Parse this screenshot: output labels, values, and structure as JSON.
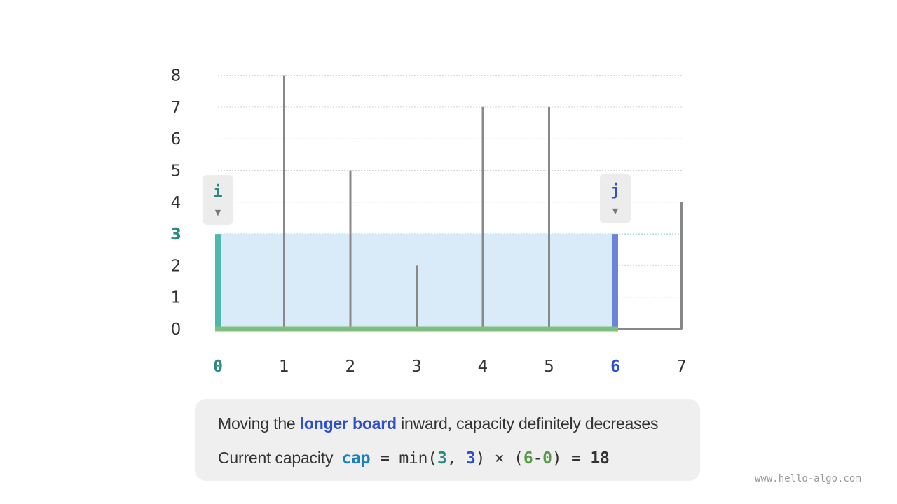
{
  "chart_data": {
    "type": "bar",
    "x": [
      "0",
      "1",
      "2",
      "3",
      "4",
      "5",
      "6",
      "7"
    ],
    "heights": [
      3,
      8,
      5,
      2,
      7,
      7,
      3,
      4
    ],
    "y_ticks": [
      "0",
      "1",
      "2",
      "3",
      "4",
      "5",
      "6",
      "7",
      "8"
    ],
    "ylim": [
      0,
      8
    ],
    "grid": true,
    "pointer_i": {
      "label": "i",
      "index": 0,
      "arrow": "▼"
    },
    "pointer_j": {
      "label": "j",
      "index": 6,
      "arrow": "▼"
    },
    "water_level": 3,
    "colors": {
      "i_board": "#4fb8ae",
      "j_board": "#6a84dc",
      "board": "#888888",
      "water": "#d9ebf8",
      "floor": "#7fbf7f",
      "i_text": "#2a8a80",
      "j_text": "#2f4fcc",
      "tick": "#333333"
    }
  },
  "info": {
    "line1": {
      "pre": "Moving the ",
      "highlight": "longer board",
      "post": " inward, capacity definitely decreases"
    },
    "line2": {
      "label": "Current capacity",
      "var": "cap",
      "eq1": " = min(",
      "a": "3",
      "comma": ", ",
      "b": "3",
      "mid": ") × (",
      "c": "6",
      "minus": "-",
      "d": "0",
      "close": ") = ",
      "result": "18"
    }
  },
  "watermark": "www.hello-algo.com"
}
